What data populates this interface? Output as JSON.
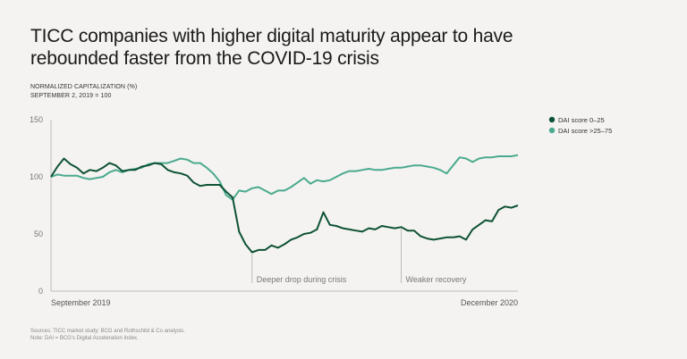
{
  "header": {
    "title": "TICC companies with higher digital maturity appear to have rebounded faster from the COVID-19 crisis",
    "subtitle_line1": "NORMALIZED CAPITALIZATION (%)",
    "subtitle_line2": "SEPTEMBER 2, 2019 = 100"
  },
  "footer": {
    "sources": "Sources: TICC market study; BCG and Rothschild & Co analysis.",
    "note": "Note: DAI = BCG's Digital Acceleration Index."
  },
  "chart_data": {
    "type": "line",
    "title": "TICC companies with higher digital maturity appear to have rebounded faster from the COVID-19 crisis",
    "ylabel": "Normalized capitalization (%), September 2, 2019 = 100",
    "xlabel": "",
    "ylim": [
      0,
      150
    ],
    "yticks": [
      0,
      50,
      100,
      150
    ],
    "x_start_label": "September 2019",
    "x_end_label": "December 2020",
    "grid": false,
    "legend_position": "top-right",
    "colors": {
      "dai_0_25": "#0d5234",
      "dai_25_75": "#4aaa8e",
      "axis": "#bdbdbd",
      "annotation": "#bdbdbd"
    },
    "annotations": [
      {
        "label": "Deeper drop during crisis",
        "index": 31
      },
      {
        "label": "Weaker recovery",
        "index": 54
      }
    ],
    "series": [
      {
        "name": "DAI score 0–25",
        "key": "dai_0_25",
        "values": [
          100,
          109,
          116,
          111,
          108,
          103,
          106,
          105,
          108,
          112,
          110,
          105,
          106,
          106,
          109,
          110,
          112,
          111,
          106,
          104,
          103,
          101,
          95,
          92,
          93,
          93,
          93,
          87,
          82,
          52,
          41,
          34,
          36,
          36,
          40,
          38,
          41,
          45,
          47,
          50,
          51,
          54,
          69,
          58,
          57,
          55,
          54,
          53,
          52,
          55,
          54,
          57,
          56,
          55,
          56,
          53,
          53,
          48,
          46,
          45,
          46,
          47,
          47,
          48,
          45,
          54,
          58,
          62,
          61,
          71,
          74,
          73,
          75
        ]
      },
      {
        "name": "DAI score >25–75",
        "key": "dai_25_75",
        "values": [
          100,
          102,
          101,
          101,
          101,
          99,
          98,
          99,
          100,
          104,
          106,
          104,
          106,
          107,
          108,
          111,
          112,
          112,
          112,
          114,
          116,
          115,
          112,
          112,
          108,
          103,
          96,
          84,
          80,
          88,
          87,
          90,
          91,
          88,
          85,
          88,
          88,
          91,
          95,
          99,
          94,
          97,
          96,
          97,
          100,
          103,
          105,
          105,
          106,
          107,
          106,
          106,
          107,
          108,
          108,
          109,
          110,
          110,
          109,
          108,
          106,
          103,
          110,
          117,
          116,
          113,
          116,
          117,
          117,
          118,
          118,
          118,
          119
        ]
      }
    ]
  }
}
